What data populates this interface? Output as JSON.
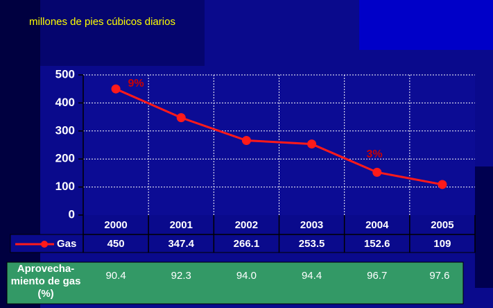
{
  "chart_data": {
    "type": "line",
    "title": "millones de pies cúbicos diarios",
    "categories": [
      "2000",
      "2001",
      "2002",
      "2003",
      "2004",
      "2005"
    ],
    "series": [
      {
        "name": "Gas",
        "color": "#ff1a1a",
        "values": [
          450,
          347.4,
          266.1,
          253.5,
          152.6,
          109
        ]
      }
    ],
    "ylim": [
      0,
      500
    ],
    "yticks": [
      0,
      100,
      200,
      300,
      400,
      500
    ],
    "grid": true,
    "annotations": [
      "9%",
      "3%"
    ],
    "extra_row": {
      "label": [
        "Aprovecha-",
        "miento de gas",
        "(%)"
      ],
      "values": [
        90.4,
        92.3,
        94,
        94.4,
        96.7,
        97.6
      ],
      "value_labels": [
        "90.4",
        "92.3",
        "94.0",
        "94.4",
        "96.7",
        "97.6"
      ]
    }
  }
}
